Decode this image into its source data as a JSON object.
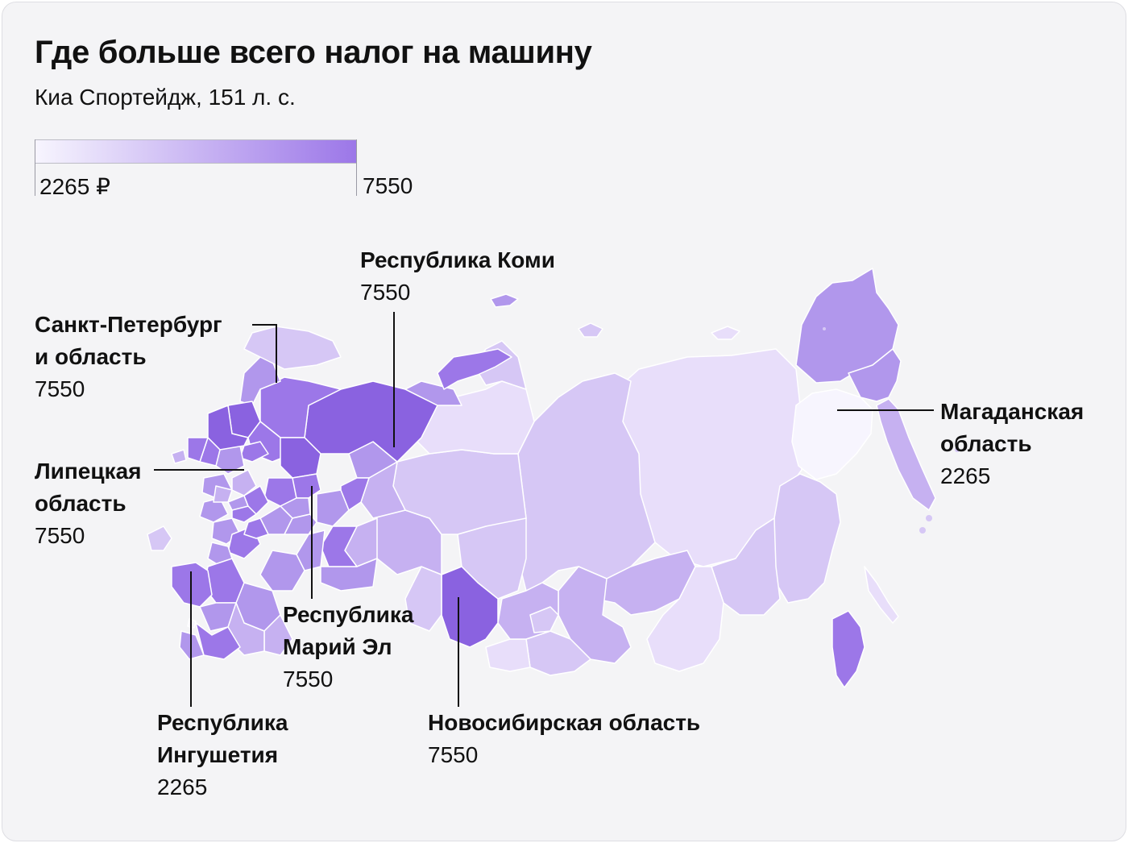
{
  "title": "Где больше всего налог на машину",
  "subtitle": "Киа Спортейдж, 151 л. с.",
  "legend": {
    "min_label": "2265 ₽",
    "max_label": "7550",
    "min": 2265,
    "max": 7550,
    "color_min": "#f7f5fe",
    "color_max": "#9c77e8"
  },
  "colors": {
    "background": "#f4f4f6",
    "region_border": "#ffffff",
    "leader_line": "#111111",
    "scale": [
      "#f7f5fe",
      "#e8defa",
      "#d6c7f5",
      "#c6b1f1",
      "#b197ec",
      "#9c77e8",
      "#8a62e0"
    ]
  },
  "callouts": [
    {
      "id": "komi",
      "name": "Республика Коми",
      "value": "7550"
    },
    {
      "id": "spb",
      "name": "Санкт-Петербург и область",
      "name_lines": [
        "Санкт-Петербург",
        "и область"
      ],
      "value": "7550"
    },
    {
      "id": "lipetsk",
      "name": "Липецкая область",
      "name_lines": [
        "Липецкая",
        "область"
      ],
      "value": "7550"
    },
    {
      "id": "mariel",
      "name": "Республика Марий Эл",
      "name_lines": [
        "Республика",
        "Марий Эл"
      ],
      "value": "7550"
    },
    {
      "id": "ingush",
      "name": "Республика Ингушетия",
      "name_lines": [
        "Республика",
        "Ингушетия"
      ],
      "value": "2265"
    },
    {
      "id": "novosib",
      "name": "Новосибирская область",
      "value": "7550"
    },
    {
      "id": "magadan",
      "name": "Магаданская область",
      "name_lines": [
        "Магаданская",
        "область"
      ],
      "value": "2265"
    }
  ]
}
